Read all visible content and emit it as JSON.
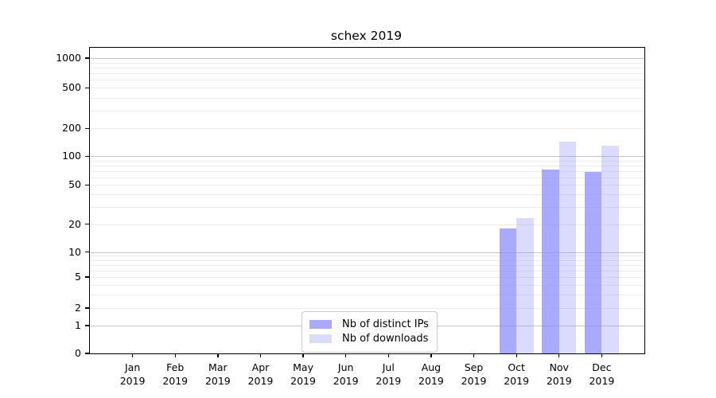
{
  "chart_data": {
    "type": "bar",
    "title": "schex 2019",
    "x_tick_labels": [
      [
        "Jan",
        "2019"
      ],
      [
        "Feb",
        "2019"
      ],
      [
        "Mar",
        "2019"
      ],
      [
        "Apr",
        "2019"
      ],
      [
        "May",
        "2019"
      ],
      [
        "Jun",
        "2019"
      ],
      [
        "Jul",
        "2019"
      ],
      [
        "Aug",
        "2019"
      ],
      [
        "Sep",
        "2019"
      ],
      [
        "Oct",
        "2019"
      ],
      [
        "Nov",
        "2019"
      ],
      [
        "Dec",
        "2019"
      ]
    ],
    "y_ticks": [
      0,
      1,
      2,
      5,
      10,
      20,
      50,
      100,
      200,
      500,
      1000
    ],
    "y_scale": "log above 1, linear 0-1",
    "ylim": [
      0,
      1270
    ],
    "grid": true,
    "legend_position": "lower center",
    "series": [
      {
        "name": "Nb of distinct IPs",
        "color": "#8888ff",
        "alpha": 0.72,
        "values": [
          0,
          0,
          0,
          0,
          0,
          0,
          0,
          0,
          0,
          18,
          72,
          69
        ]
      },
      {
        "name": "Nb of downloads",
        "color": "#8888ff",
        "alpha": 0.3,
        "values": [
          0,
          0,
          0,
          0,
          0,
          0,
          0,
          0,
          0,
          23,
          145,
          130
        ]
      }
    ],
    "colors": {
      "major_grid": "#c6c6c6",
      "minor_grid": "#ececec",
      "spine": "#000000"
    }
  }
}
